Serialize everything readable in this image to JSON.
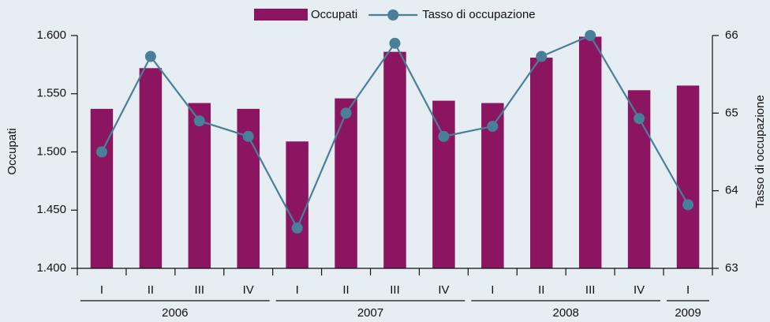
{
  "chart_data": {
    "type": "bar-line",
    "category_groups": [
      {
        "label": "2006",
        "categories": [
          "I",
          "II",
          "III",
          "IV"
        ]
      },
      {
        "label": "2007",
        "categories": [
          "I",
          "II",
          "III",
          "IV"
        ]
      },
      {
        "label": "2008",
        "categories": [
          "I",
          "II",
          "III",
          "IV"
        ]
      },
      {
        "label": "2009",
        "categories": [
          "I"
        ]
      }
    ],
    "series": [
      {
        "name": "Occupati",
        "type": "bar",
        "color": "#8b1560",
        "values": [
          1537,
          1572,
          1542,
          1537,
          1509,
          1546,
          1586,
          1544,
          1542,
          1581,
          1599,
          1553,
          1557
        ]
      },
      {
        "name": "Tasso di occupazione",
        "type": "line",
        "axis": "y2",
        "color": "#4a7f99",
        "values": [
          64.5,
          65.73,
          64.9,
          64.7,
          63.52,
          65.0,
          65.9,
          64.7,
          64.83,
          65.73,
          66.0,
          64.93,
          63.82
        ]
      }
    ],
    "y_label": "Occupati",
    "y2_label": "Tasso di occupazione",
    "ylim": [
      1400,
      1600
    ],
    "yticks": [
      {
        "value": 1400,
        "label": "1.400"
      },
      {
        "value": 1450,
        "label": "1.450"
      },
      {
        "value": 1500,
        "label": "1.500"
      },
      {
        "value": 1550,
        "label": "1.550"
      },
      {
        "value": 1600,
        "label": "1.600"
      }
    ],
    "y2lim": [
      63,
      66
    ],
    "y2ticks": [
      63,
      64,
      65,
      66
    ]
  }
}
